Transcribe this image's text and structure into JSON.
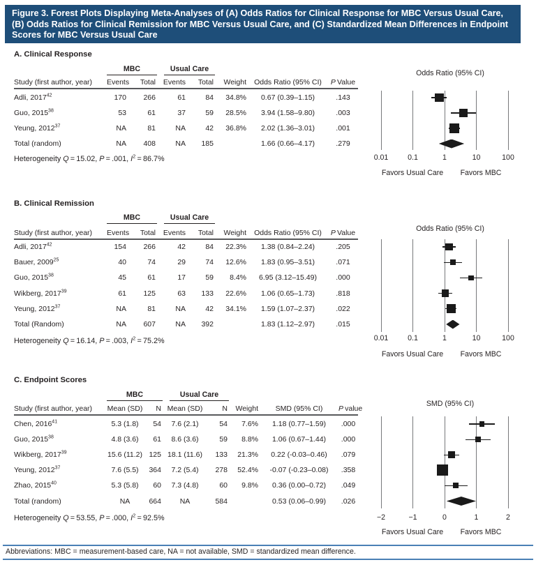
{
  "title_bar": {
    "text": "Figure 3. Forest Plots Displaying Meta-Analyses of (A) Odds Ratios for Clinical Response for MBC Versus Usual Care, (B) Odds Ratios for Clinical Remission for MBC Versus Usual Care, and (C) Standardized Mean Differences in Endpoint Scores for MBC Versus Usual Care",
    "bg": "#1e4e79",
    "fg": "#ffffff"
  },
  "colors": {
    "marker": "#1a1a1a",
    "gridline": "#77787b",
    "table_rule": "#58595b",
    "group_rule": "#231f20",
    "footer_rule": "#4a80b5",
    "text": "#231f20"
  },
  "sections": [
    {
      "heading": "A. Clinical Response",
      "group_headers": [
        "MBC",
        "Usual Care"
      ],
      "columns": [
        "Study (first author, year)",
        "Events",
        "Total",
        "Events",
        "Total",
        "Weight",
        "Odds Ratio (95% CI)",
        "P Value"
      ],
      "rows": [
        {
          "study": "Adli, 2017",
          "ref": "42",
          "cells": [
            "170",
            "266",
            "61",
            "84",
            "34.8%",
            "0.67 (0.39–1.15)",
            ".143"
          ]
        },
        {
          "study": "Guo, 2015",
          "ref": "38",
          "cells": [
            "53",
            "61",
            "37",
            "59",
            "28.5%",
            "3.94 (1.58–9.80)",
            ".003"
          ]
        },
        {
          "study": "Yeung, 2012",
          "ref": "37",
          "cells": [
            "NA",
            "81",
            "NA",
            "42",
            "36.8%",
            "2.02 (1.36–3.01)",
            ".001"
          ]
        },
        {
          "study": "Total (random)",
          "ref": "",
          "cells": [
            "NA",
            "408",
            "NA",
            "185",
            "",
            "1.66 (0.66–4.17)",
            ".279"
          ]
        }
      ],
      "heterogeneity": {
        "label": "Heterogeneity",
        "Q": "15.02",
        "P": ".001",
        "I2": "86.7%"
      }
    },
    {
      "heading": "B. Clinical Remission",
      "group_headers": [
        "MBC",
        "Usual Care"
      ],
      "columns": [
        "Study (first author, year)",
        "Events",
        "Total",
        "Events",
        "Total",
        "Weight",
        "Odds Ratio (95% CI)",
        "P Value"
      ],
      "rows": [
        {
          "study": "Adli, 2017",
          "ref": "42",
          "cells": [
            "154",
            "266",
            "42",
            "84",
            "22.3%",
            "1.38 (0.84–2.24)",
            ".205"
          ]
        },
        {
          "study": "Bauer, 2009",
          "ref": "25",
          "cells": [
            "40",
            "74",
            "29",
            "74",
            "12.6%",
            "1.83 (0.95–3.51)",
            ".071"
          ]
        },
        {
          "study": "Guo, 2015",
          "ref": "38",
          "cells": [
            "45",
            "61",
            "17",
            "59",
            "8.4%",
            "6.95 (3.12–15.49)",
            ".000"
          ]
        },
        {
          "study": "Wikberg, 2017",
          "ref": "39",
          "cells": [
            "61",
            "125",
            "63",
            "133",
            "22.6%",
            "1.06 (0.65–1.73)",
            ".818"
          ]
        },
        {
          "study": "Yeung, 2012",
          "ref": "37",
          "cells": [
            "NA",
            "81",
            "NA",
            "42",
            "34.1%",
            "1.59 (1.07–2.37)",
            ".022"
          ]
        },
        {
          "study": "Total (Random)",
          "ref": "",
          "cells": [
            "NA",
            "607",
            "NA",
            "392",
            "",
            "1.83 (1.12–2.97)",
            ".015"
          ]
        }
      ],
      "heterogeneity": {
        "label": "Heterogeneity",
        "Q": "16.14",
        "P": ".003",
        "I2": "75.2%"
      }
    },
    {
      "heading": "C. Endpoint Scores",
      "group_headers": [
        "MBC",
        "Usual Care"
      ],
      "columns": [
        "Study (first author, year)",
        "Mean (SD)",
        "N",
        "Mean (SD)",
        "N",
        "Weight",
        "SMD (95% CI)",
        "P value"
      ],
      "rows": [
        {
          "study": "Chen, 2016",
          "ref": "41",
          "cells": [
            "5.3 (1.8)",
            "54",
            "7.6 (2.1)",
            "54",
            "7.6%",
            "1.18 (0.77–1.59)",
            ".000"
          ]
        },
        {
          "study": "Guo, 2015",
          "ref": "38",
          "cells": [
            "4.8 (3.6)",
            "61",
            "8.6 (3.6)",
            "59",
            "8.8%",
            "1.06 (0.67–1.44)",
            ".000"
          ]
        },
        {
          "study": "Wikberg, 2017",
          "ref": "39",
          "cells": [
            "15.6 (11.2)",
            "125",
            "18.1 (11.6)",
            "133",
            "21.3%",
            "0.22 (-0.03–0.46)",
            ".079"
          ]
        },
        {
          "study": "Yeung, 2012",
          "ref": "37",
          "cells": [
            "7.6 (5.5)",
            "364",
            "7.2 (5.4)",
            "278",
            "52.4%",
            "-0.07 (-0.23–0.08)",
            ".358"
          ]
        },
        {
          "study": "Zhao, 2015",
          "ref": "40",
          "cells": [
            "5.3 (5.8)",
            "60",
            "7.3 (4.8)",
            "60",
            "9.8%",
            "0.36 (0.00–0.72)",
            ".049"
          ]
        },
        {
          "study": "Total (random)",
          "ref": "",
          "cells": [
            "NA",
            "664",
            "NA",
            "584",
            "",
            "0.53 (0.06–0.99)",
            ".026"
          ]
        }
      ],
      "heterogeneity": {
        "label": "Heterogeneity",
        "Q": "53.55",
        "P": ".000",
        "I2": "92.5%"
      }
    }
  ],
  "chart_data": [
    {
      "type": "forest",
      "panel": "A",
      "title": "Odds Ratio (95% CI)",
      "scale": "log",
      "xlim": [
        0.01,
        100
      ],
      "xticks": [
        0.01,
        0.1,
        1,
        10,
        100
      ],
      "xtick_labels": [
        "0.01",
        "0.1",
        "1",
        "10",
        "100"
      ],
      "x_axis_label_left": "Favors Usual Care",
      "x_axis_label_right": "Favors MBC",
      "grid": "vertical-lines-at-ticks",
      "studies": [
        {
          "name": "Adli, 2017",
          "est": 0.67,
          "lo": 0.39,
          "hi": 1.15,
          "weight_pct": 34.8
        },
        {
          "name": "Guo, 2015",
          "est": 3.94,
          "lo": 1.58,
          "hi": 9.8,
          "weight_pct": 28.5
        },
        {
          "name": "Yeung, 2012",
          "est": 2.02,
          "lo": 1.36,
          "hi": 3.01,
          "weight_pct": 36.8
        }
      ],
      "total": {
        "name": "Total (random)",
        "est": 1.66,
        "lo": 0.66,
        "hi": 4.17
      }
    },
    {
      "type": "forest",
      "panel": "B",
      "title": "Odds Ratio (95% CI)",
      "scale": "log",
      "xlim": [
        0.01,
        100
      ],
      "xticks": [
        0.01,
        0.1,
        1,
        10,
        100
      ],
      "xtick_labels": [
        "0.01",
        "0.1",
        "1",
        "10",
        "100"
      ],
      "x_axis_label_left": "Favors Usual Care",
      "x_axis_label_right": "Favors MBC",
      "grid": "vertical-lines-at-ticks",
      "studies": [
        {
          "name": "Adli, 2017",
          "est": 1.38,
          "lo": 0.84,
          "hi": 2.24,
          "weight_pct": 22.3
        },
        {
          "name": "Bauer, 2009",
          "est": 1.83,
          "lo": 0.95,
          "hi": 3.51,
          "weight_pct": 12.6
        },
        {
          "name": "Guo, 2015",
          "est": 6.95,
          "lo": 3.12,
          "hi": 15.49,
          "weight_pct": 8.4
        },
        {
          "name": "Wikberg, 2017",
          "est": 1.06,
          "lo": 0.65,
          "hi": 1.73,
          "weight_pct": 22.6
        },
        {
          "name": "Yeung, 2012",
          "est": 1.59,
          "lo": 1.07,
          "hi": 2.37,
          "weight_pct": 34.1
        }
      ],
      "total": {
        "name": "Total (Random)",
        "est": 1.83,
        "lo": 1.12,
        "hi": 2.97
      }
    },
    {
      "type": "forest",
      "panel": "C",
      "title": "SMD (95% CI)",
      "scale": "linear",
      "xlim": [
        -2,
        2
      ],
      "xticks": [
        -2,
        -1,
        0,
        1,
        2
      ],
      "xtick_labels": [
        "−2",
        "−1",
        "0",
        "1",
        "2"
      ],
      "x_axis_label_left": "Favors Usual Care",
      "x_axis_label_right": "Favors MBC",
      "grid": "vertical-lines-at-ticks",
      "studies": [
        {
          "name": "Chen, 2016",
          "est": 1.18,
          "lo": 0.77,
          "hi": 1.59,
          "weight_pct": 7.6
        },
        {
          "name": "Guo, 2015",
          "est": 1.06,
          "lo": 0.67,
          "hi": 1.44,
          "weight_pct": 8.8
        },
        {
          "name": "Wikberg, 2017",
          "est": 0.22,
          "lo": -0.03,
          "hi": 0.46,
          "weight_pct": 21.3
        },
        {
          "name": "Yeung, 2012",
          "est": -0.07,
          "lo": -0.23,
          "hi": 0.08,
          "weight_pct": 52.4
        },
        {
          "name": "Zhao, 2015",
          "est": 0.36,
          "lo": 0.0,
          "hi": 0.72,
          "weight_pct": 9.8
        }
      ],
      "total": {
        "name": "Total (random)",
        "est": 0.53,
        "lo": 0.06,
        "hi": 0.99
      }
    }
  ],
  "footer": {
    "abbreviations": "Abbreviations: MBC = measurement-based care, NA = not available, SMD = standardized mean difference."
  }
}
